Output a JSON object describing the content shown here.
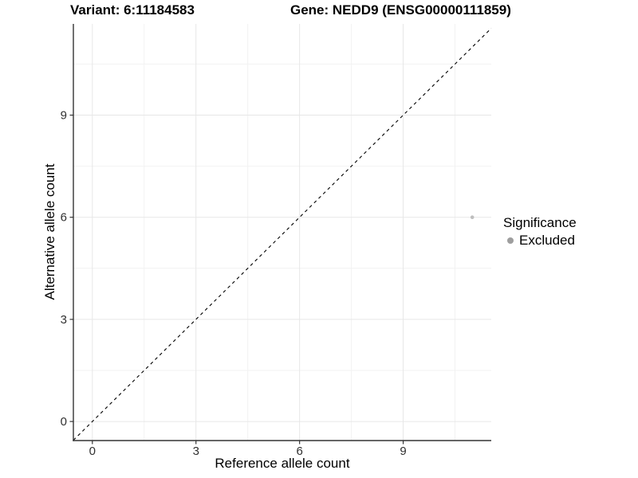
{
  "header": {
    "variant_title": "Variant: 6:11184583",
    "gene_title": "Gene: NEDD9 (ENSG00000111859)"
  },
  "chart_data": {
    "type": "scatter",
    "xlabel": "Reference allele count",
    "ylabel": "Alternative allele count",
    "xlim": [
      -0.55,
      11.55
    ],
    "ylim": [
      -0.56,
      11.68
    ],
    "x_major_ticks": [
      0,
      3,
      6,
      9
    ],
    "y_major_ticks": [
      0,
      3,
      6,
      9
    ],
    "x_minor_ticks": [
      1.5,
      4.5,
      7.5,
      10.5
    ],
    "y_minor_ticks": [
      1.5,
      4.5,
      7.5,
      10.5
    ],
    "grid": "major+minor on white panel",
    "identity_line": {
      "slope": 1,
      "intercept": 0,
      "style": "dashed",
      "color": "#000000"
    },
    "series": [
      {
        "name": "Excluded",
        "color": "#bebebe",
        "point_radius": 2.3,
        "points": [
          {
            "x": 11,
            "y": 6
          }
        ]
      }
    ],
    "legend": {
      "title": "Significance",
      "position": "right",
      "entries": [
        {
          "label": "Excluded",
          "color": "#9e9e9e"
        }
      ]
    },
    "colors": {
      "grid_major": "#e7e7e7",
      "grid_minor": "#f2f2f2",
      "axis_line": "#333333",
      "tick_mark": "#333333",
      "tick_label": "#303030"
    }
  }
}
